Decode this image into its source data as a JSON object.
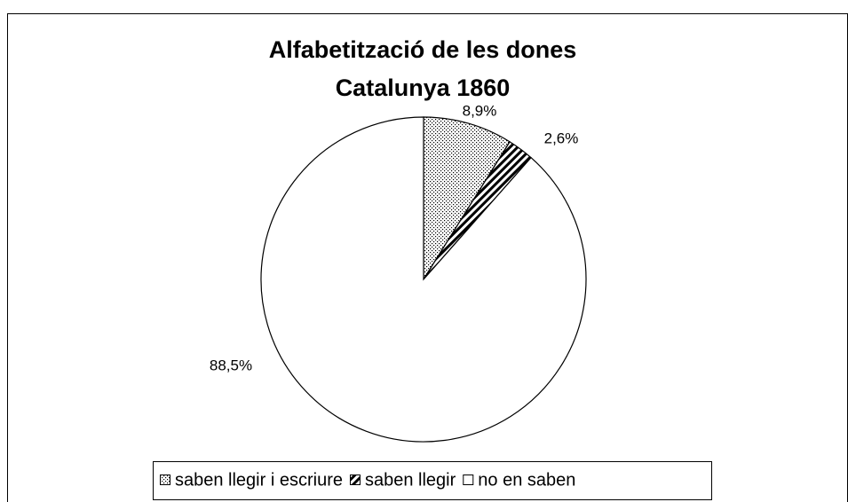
{
  "chart_data": {
    "type": "pie",
    "title": "Alfabetització de les dones",
    "subtitle": "Catalunya 1860",
    "categories": [
      "saben llegir i escriure",
      "saben llegir",
      "no en saben"
    ],
    "values": [
      8.9,
      2.6,
      88.5
    ],
    "value_labels": [
      "8,9%",
      "2,6%",
      "88,5%"
    ],
    "legend": "bottom"
  }
}
